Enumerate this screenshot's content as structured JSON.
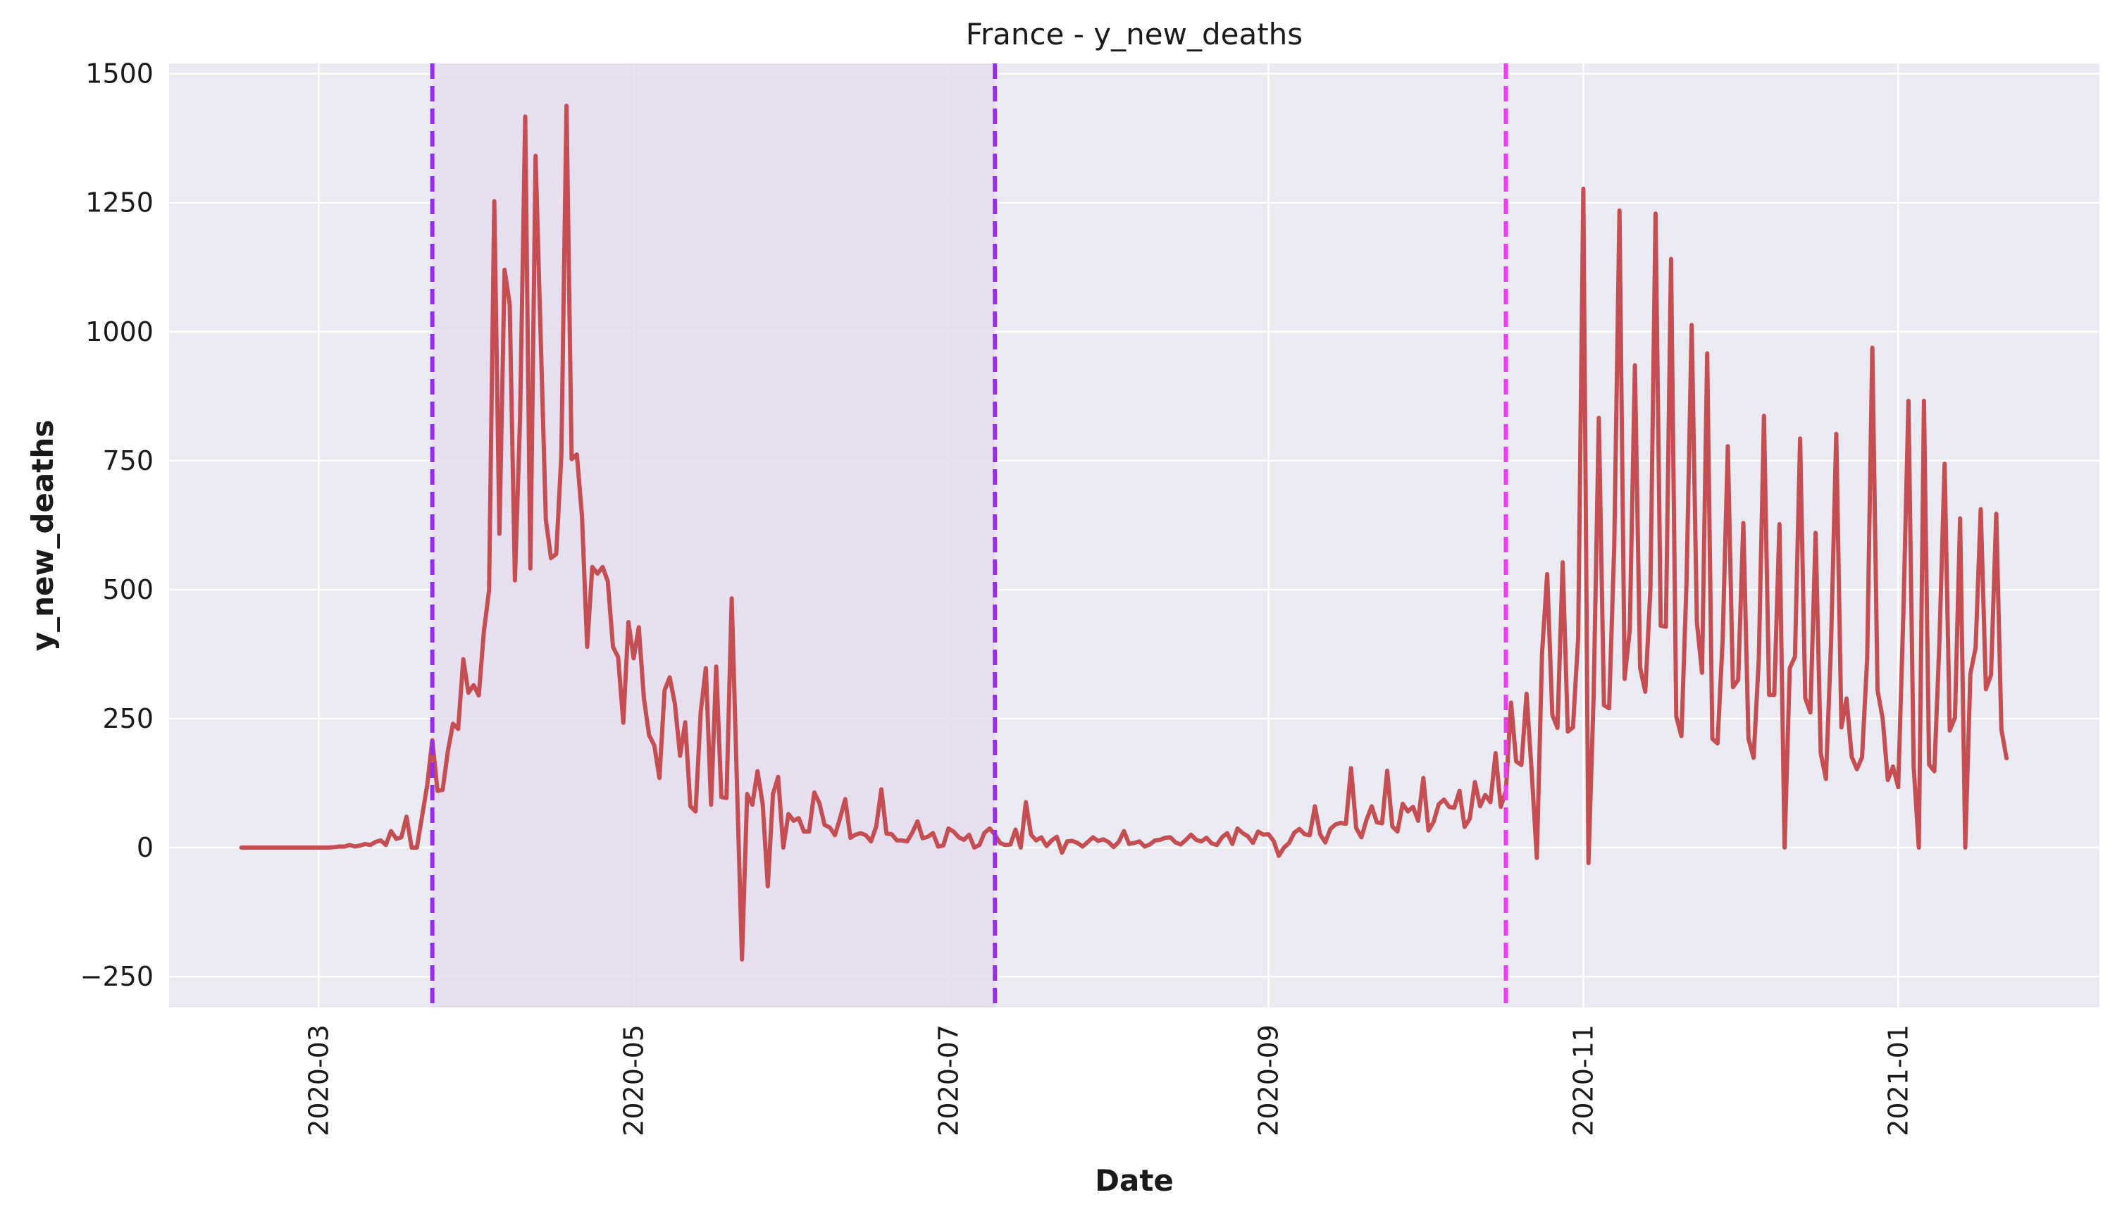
{
  "chart_data": {
    "type": "line",
    "title": "France - y_new_deaths",
    "xlabel": "Date",
    "ylabel": "y_new_deaths",
    "xlim": [
      "2020-02-01",
      "2021-02-09"
    ],
    "ylim": [
      -310,
      1520
    ],
    "grid": true,
    "legend": "none",
    "colors": {
      "background": "#eaeaf2",
      "grid": "#ffffff",
      "series": "#c44e52",
      "vline_a": "#9a2cf0",
      "vline_b": "#f03cf0",
      "shade": "#e6dcf0"
    },
    "x_ticks": [
      "2020-03-01",
      "2020-05-01",
      "2020-07-01",
      "2020-09-01",
      "2020-11-01",
      "2021-01-01"
    ],
    "x_tick_labels": [
      "2020-03",
      "2020-05",
      "2020-07",
      "2020-09",
      "2020-11",
      "2021-01"
    ],
    "y_ticks": [
      -250,
      0,
      250,
      500,
      750,
      1000,
      1250,
      1500
    ],
    "y_tick_labels": [
      "−250",
      "0",
      "250",
      "500",
      "750",
      "1000",
      "1250",
      "1500"
    ],
    "vlines": [
      {
        "x": "2020-03-23",
        "style": "dashed",
        "color": "#9a2cf0"
      },
      {
        "x": "2020-07-10",
        "style": "dashed",
        "color": "#9a2cf0"
      },
      {
        "x": "2020-10-17",
        "style": "dashed",
        "color": "#f03cf0"
      }
    ],
    "shaded_region": {
      "from": "2020-03-23",
      "to": "2020-07-10"
    },
    "series": [
      {
        "start": "2020-02-15",
        "values": [
          0,
          0,
          0,
          0,
          0,
          0,
          0,
          0,
          0,
          0,
          0,
          0,
          0,
          0,
          0,
          0,
          0,
          0,
          1,
          2,
          2,
          5,
          2,
          4,
          7,
          5,
          11,
          14,
          5,
          32,
          17,
          20,
          60,
          0,
          0,
          60,
          120,
          208,
          110,
          112,
          186,
          240,
          230,
          365,
          300,
          315,
          295,
          420,
          499,
          1253,
          608,
          1120,
          1053,
          518,
          833,
          1417,
          541,
          1341,
          987,
          635,
          561,
          569,
          761,
          1438,
          753,
          762,
          642,
          389,
          544,
          531,
          544,
          516,
          389,
          369,
          242,
          437,
          367,
          427,
          289,
          218,
          198,
          135,
          305,
          330,
          278,
          178,
          243,
          80,
          70,
          263,
          348,
          83,
          351,
          98,
          96,
          483,
          131,
          -217,
          104,
          83,
          148,
          85,
          -75,
          104,
          137,
          0,
          65,
          52,
          57,
          31,
          31,
          107,
          86,
          44,
          39,
          24,
          57,
          94,
          19,
          25,
          28,
          24,
          12,
          41,
          113,
          27,
          26,
          14,
          14,
          12,
          29,
          51,
          18,
          21,
          28,
          2,
          4,
          37,
          31,
          20,
          15,
          25,
          0,
          5,
          29,
          37,
          25,
          9,
          5,
          6,
          35,
          0,
          88,
          25,
          14,
          20,
          3,
          14,
          21,
          -10,
          12,
          13,
          9,
          2,
          11,
          20,
          13,
          16,
          11,
          1,
          11,
          32,
          7,
          9,
          12,
          2,
          6,
          14,
          15,
          19,
          20,
          10,
          6,
          15,
          25,
          15,
          12,
          19,
          8,
          5,
          20,
          28,
          7,
          37,
          28,
          22,
          9,
          31,
          25,
          26,
          13,
          -16,
          0,
          9,
          29,
          36,
          26,
          24,
          80,
          26,
          10,
          36,
          45,
          48,
          46,
          154,
          38,
          20,
          54,
          80,
          49,
          47,
          149,
          41,
          31,
          85,
          70,
          79,
          52,
          135,
          33,
          50,
          84,
          93,
          79,
          77,
          110,
          40,
          56,
          127,
          80,
          102,
          88,
          183,
          79,
          110,
          281,
          167,
          160,
          298,
          147,
          -20,
          377,
          530,
          257,
          232,
          553,
          225,
          233,
          408,
          1277,
          -30,
          293,
          833,
          276,
          270,
          586,
          1235,
          327,
          422,
          935,
          349,
          302,
          500,
          1229,
          430,
          428,
          1141,
          254,
          216,
          515,
          1013,
          436,
          339,
          958,
          211,
          202,
          404,
          778,
          311,
          325,
          629,
          211,
          174,
          366,
          837,
          296,
          296,
          627,
          0,
          348,
          370,
          793,
          290,
          262,
          610,
          183,
          133,
          395,
          802,
          233,
          289,
          176,
          152,
          175,
          367,
          969,
          305,
          250,
          131,
          157,
          117,
          450,
          866,
          156,
          0,
          866,
          161,
          148,
          401,
          744,
          227,
          252,
          638,
          0,
          337,
          387,
          656,
          307,
          335,
          647,
          229,
          173
        ]
      }
    ]
  }
}
